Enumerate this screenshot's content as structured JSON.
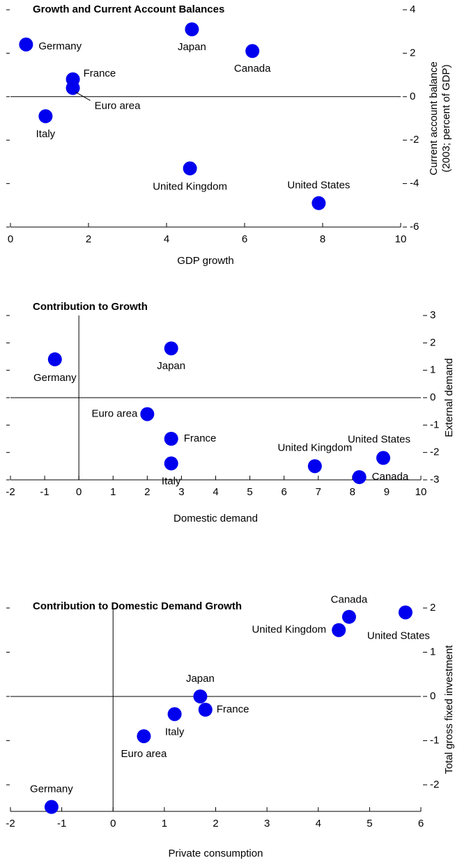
{
  "chart_data": [
    {
      "type": "scatter",
      "title": "Growth and Current Account Balances",
      "xlabel": "GDP growth",
      "ylabel": [
        "Current account balance",
        "(2003; percent of GDP)"
      ],
      "color": "#0000ee",
      "xlim": [
        0,
        10
      ],
      "xticks": [
        0,
        2,
        4,
        6,
        8,
        10
      ],
      "ylim": [
        -6,
        4
      ],
      "yticks": [
        4,
        2,
        0,
        -2,
        -4,
        -6
      ],
      "points": [
        {
          "label": "Germany",
          "x": 0.4,
          "y": 2.4
        },
        {
          "label": "Japan",
          "x": 4.65,
          "y": 3.1
        },
        {
          "label": "Canada",
          "x": 6.2,
          "y": 2.1
        },
        {
          "label": "France",
          "x": 1.6,
          "y": 0.8
        },
        {
          "label": "Euro area",
          "x": 1.6,
          "y": 0.4
        },
        {
          "label": "Italy",
          "x": 0.9,
          "y": -0.9
        },
        {
          "label": "United Kingdom",
          "x": 4.6,
          "y": -3.3
        },
        {
          "label": "United States",
          "x": 7.9,
          "y": -4.9
        }
      ]
    },
    {
      "type": "scatter",
      "title": "Contribution to Growth",
      "xlabel": "Domestic demand",
      "ylabel": [
        "External demand"
      ],
      "color": "#0000ee",
      "xlim": [
        -2,
        10
      ],
      "xticks": [
        -2,
        -1,
        0,
        1,
        2,
        3,
        4,
        5,
        6,
        7,
        8,
        9,
        10
      ],
      "ylim": [
        -3,
        3
      ],
      "yticks": [
        3,
        2,
        1,
        0,
        -1,
        -2,
        -3
      ],
      "points": [
        {
          "label": "Germany",
          "x": -0.7,
          "y": 1.4
        },
        {
          "label": "Japan",
          "x": 2.7,
          "y": 1.8
        },
        {
          "label": "Euro area",
          "x": 2.0,
          "y": -0.6
        },
        {
          "label": "France",
          "x": 2.7,
          "y": -1.5
        },
        {
          "label": "Italy",
          "x": 2.7,
          "y": -2.4
        },
        {
          "label": "United Kingdom",
          "x": 6.9,
          "y": -2.5
        },
        {
          "label": "Canada",
          "x": 8.2,
          "y": -2.9
        },
        {
          "label": "United States",
          "x": 8.9,
          "y": -2.2
        }
      ]
    },
    {
      "type": "scatter",
      "title": "Contribution to Domestic Demand Growth",
      "xlabel": "Private consumption",
      "ylabel": [
        "Total gross fixed investment"
      ],
      "color": "#0000ee",
      "xlim": [
        -2,
        6
      ],
      "xticks": [
        -2,
        -1,
        0,
        1,
        2,
        3,
        4,
        5,
        6
      ],
      "ylim": [
        -2.6,
        2
      ],
      "yticks": [
        2,
        1,
        0,
        -1,
        -2
      ],
      "points": [
        {
          "label": "Canada",
          "x": 4.6,
          "y": 1.8
        },
        {
          "label": "United Kingdom",
          "x": 4.4,
          "y": 1.5
        },
        {
          "label": "United States",
          "x": 5.7,
          "y": 1.9
        },
        {
          "label": "Japan",
          "x": 1.7,
          "y": 0
        },
        {
          "label": "France",
          "x": 1.8,
          "y": -0.3
        },
        {
          "label": "Italy",
          "x": 1.2,
          "y": -0.4
        },
        {
          "label": "Euro area",
          "x": 0.6,
          "y": -0.9
        },
        {
          "label": "Germany",
          "x": -1.2,
          "y": -2.5
        }
      ]
    }
  ]
}
